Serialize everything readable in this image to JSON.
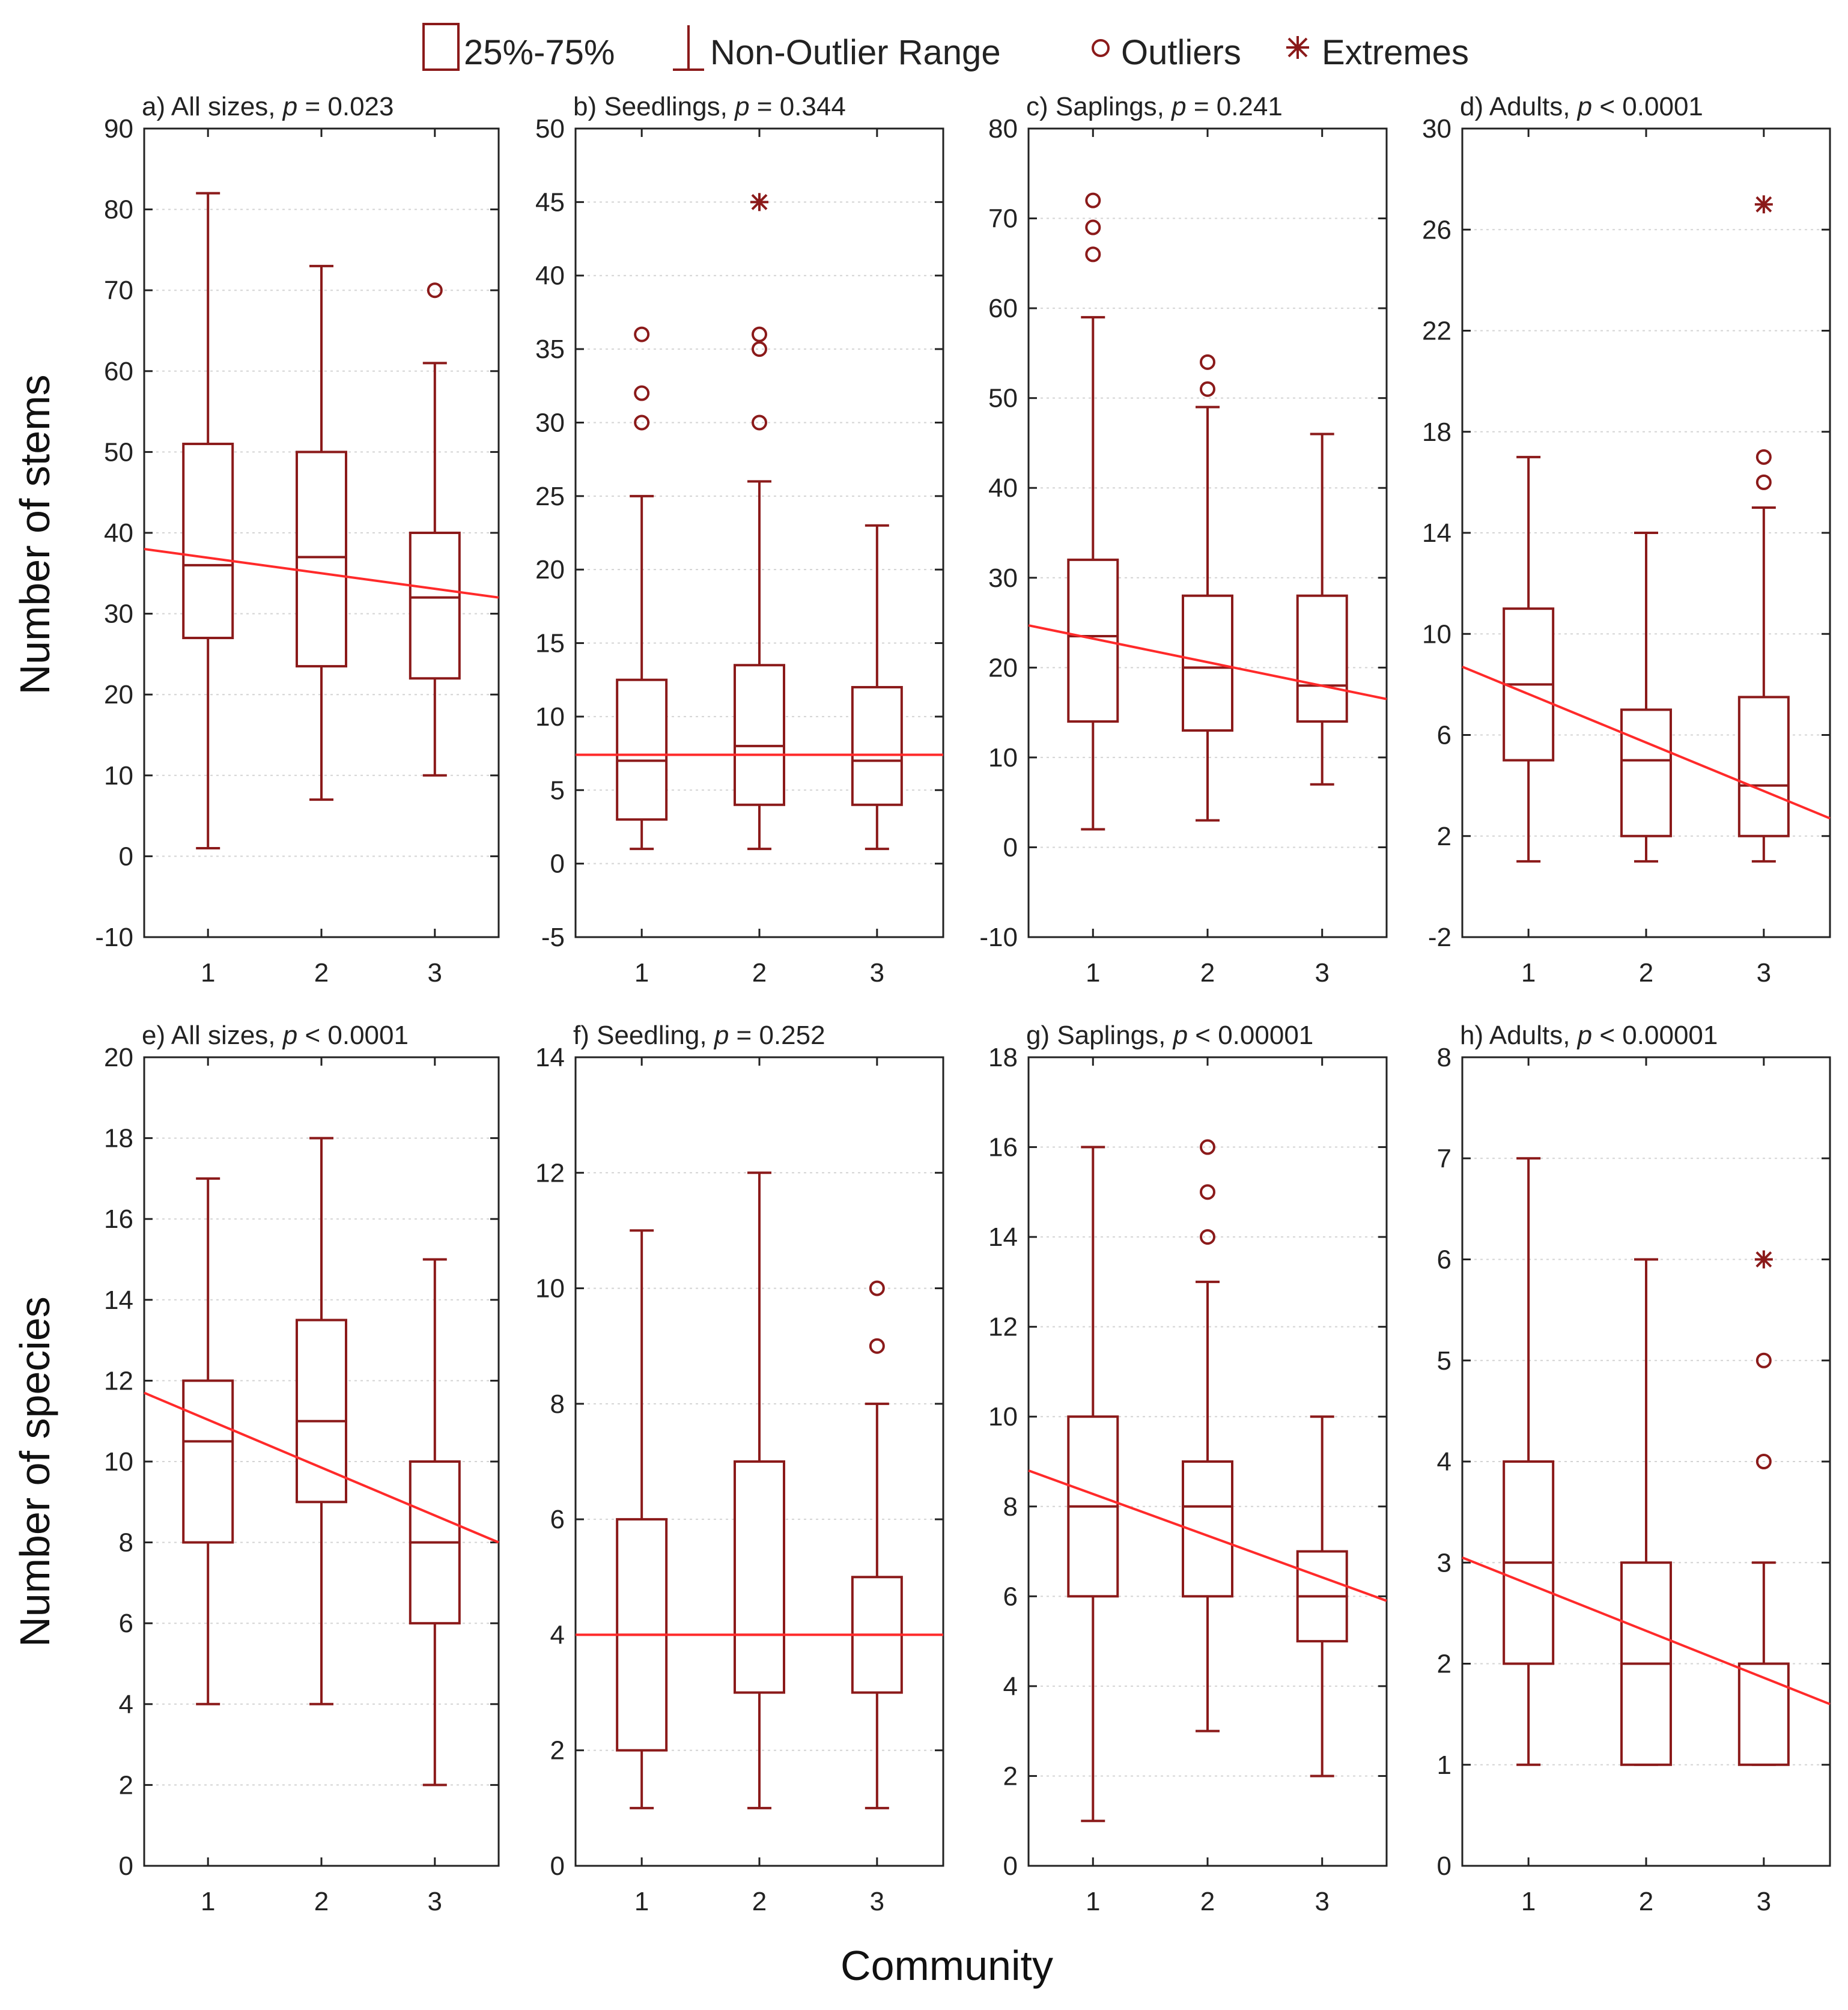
{
  "legend": {
    "box_label": "25%-75%",
    "range_label": "Non-Outlier Range",
    "outlier_label": "Outliers",
    "extreme_label": "Extremes"
  },
  "ylabel_top": "Number of stems",
  "ylabel_bottom": "Number of species",
  "xlabel": "Community",
  "colors": {
    "box": "#8b1a1a",
    "trend": "#ff2a2a"
  },
  "chart_data": [
    {
      "type": "box",
      "id": "a",
      "title_prefix": "a) All sizes,",
      "p_text": "= 0.023",
      "ylim": [
        -10,
        90
      ],
      "yticks": [
        -10,
        0,
        10,
        20,
        30,
        40,
        50,
        60,
        70,
        80,
        90
      ],
      "categories": [
        "1",
        "2",
        "3"
      ],
      "boxes": [
        {
          "community": "1",
          "min": 1,
          "q1": 27,
          "median": 36,
          "q3": 51,
          "max": 82,
          "outliers": [],
          "extremes": []
        },
        {
          "community": "2",
          "min": 7,
          "q1": 23.5,
          "median": 37,
          "q3": 50,
          "max": 73,
          "outliers": [],
          "extremes": []
        },
        {
          "community": "3",
          "min": 10,
          "q1": 22,
          "median": 32,
          "q3": 40,
          "max": 61,
          "outliers": [
            70
          ],
          "extremes": []
        }
      ],
      "trend": {
        "y_left": 38,
        "y_right": 32
      }
    },
    {
      "type": "box",
      "id": "b",
      "title_prefix": "b) Seedlings,",
      "p_text": "= 0.344",
      "ylim": [
        -5,
        50
      ],
      "yticks": [
        -5,
        0,
        5,
        10,
        15,
        20,
        25,
        30,
        35,
        40,
        45,
        50
      ],
      "categories": [
        "1",
        "2",
        "3"
      ],
      "boxes": [
        {
          "community": "1",
          "min": 1,
          "q1": 3,
          "median": 7,
          "q3": 12.5,
          "max": 25,
          "outliers": [
            30,
            32,
            36
          ],
          "extremes": []
        },
        {
          "community": "2",
          "min": 1,
          "q1": 4,
          "median": 8,
          "q3": 13.5,
          "max": 26,
          "outliers": [
            30,
            35,
            36
          ],
          "extremes": [
            45
          ]
        },
        {
          "community": "3",
          "min": 1,
          "q1": 4,
          "median": 7,
          "q3": 12,
          "max": 23,
          "outliers": [],
          "extremes": []
        }
      ],
      "trend": {
        "y_left": 7.4,
        "y_right": 7.4
      }
    },
    {
      "type": "box",
      "id": "c",
      "title_prefix": "c) Saplings,",
      "p_text": "= 0.241",
      "ylim": [
        -10,
        80
      ],
      "yticks": [
        -10,
        0,
        10,
        20,
        30,
        40,
        50,
        60,
        70,
        80
      ],
      "categories": [
        "1",
        "2",
        "3"
      ],
      "boxes": [
        {
          "community": "1",
          "min": 2,
          "q1": 14,
          "median": 23.5,
          "q3": 32,
          "max": 59,
          "outliers": [
            66,
            69,
            72
          ],
          "extremes": []
        },
        {
          "community": "2",
          "min": 3,
          "q1": 13,
          "median": 20,
          "q3": 28,
          "max": 49,
          "outliers": [
            51,
            54
          ],
          "extremes": []
        },
        {
          "community": "3",
          "min": 7,
          "q1": 14,
          "median": 18,
          "q3": 28,
          "max": 46,
          "outliers": [],
          "extremes": []
        }
      ],
      "trend": {
        "y_left": 24.7,
        "y_right": 16.5
      }
    },
    {
      "type": "box",
      "id": "d",
      "title_prefix": "d) Adults,",
      "p_text": "< 0.0001",
      "ylim": [
        -2,
        30
      ],
      "yticks": [
        -2,
        2,
        6,
        10,
        14,
        18,
        22,
        26,
        30
      ],
      "categories": [
        "1",
        "2",
        "3"
      ],
      "boxes": [
        {
          "community": "1",
          "min": 1,
          "q1": 5,
          "median": 8,
          "q3": 11,
          "max": 17,
          "outliers": [],
          "extremes": []
        },
        {
          "community": "2",
          "min": 1,
          "q1": 2,
          "median": 5,
          "q3": 7,
          "max": 14,
          "outliers": [],
          "extremes": []
        },
        {
          "community": "3",
          "min": 1,
          "q1": 2,
          "median": 4,
          "q3": 7.5,
          "max": 15,
          "outliers": [
            16,
            17
          ],
          "extremes": [
            27
          ]
        }
      ],
      "trend": {
        "y_left": 8.7,
        "y_right": 2.7
      }
    },
    {
      "type": "box",
      "id": "e",
      "title_prefix": "e) All sizes,",
      "p_text": "< 0.0001",
      "ylim": [
        0,
        20
      ],
      "yticks": [
        0,
        2,
        4,
        6,
        8,
        10,
        12,
        14,
        16,
        18,
        20
      ],
      "categories": [
        "1",
        "2",
        "3"
      ],
      "boxes": [
        {
          "community": "1",
          "min": 4,
          "q1": 8,
          "median": 10.5,
          "q3": 12,
          "max": 17,
          "outliers": [],
          "extremes": []
        },
        {
          "community": "2",
          "min": 4,
          "q1": 9,
          "median": 11,
          "q3": 13.5,
          "max": 18,
          "outliers": [],
          "extremes": []
        },
        {
          "community": "3",
          "min": 2,
          "q1": 6,
          "median": 8,
          "q3": 10,
          "max": 15,
          "outliers": [],
          "extremes": []
        }
      ],
      "trend": {
        "y_left": 11.7,
        "y_right": 8.0
      }
    },
    {
      "type": "box",
      "id": "f",
      "title_prefix": "f) Seedling,",
      "p_text": "= 0.252",
      "ylim": [
        0,
        14
      ],
      "yticks": [
        0,
        2,
        4,
        6,
        8,
        10,
        12,
        14
      ],
      "categories": [
        "1",
        "2",
        "3"
      ],
      "boxes": [
        {
          "community": "1",
          "min": 1,
          "q1": 2,
          "median": 4,
          "q3": 6,
          "max": 11,
          "outliers": [],
          "extremes": []
        },
        {
          "community": "2",
          "min": 1,
          "q1": 3,
          "median": 4,
          "q3": 7,
          "max": 12,
          "outliers": [],
          "extremes": []
        },
        {
          "community": "3",
          "min": 1,
          "q1": 3,
          "median": 4,
          "q3": 5,
          "max": 8,
          "outliers": [
            9,
            10
          ],
          "extremes": []
        }
      ],
      "trend": {
        "y_left": 4,
        "y_right": 4
      }
    },
    {
      "type": "box",
      "id": "g",
      "title_prefix": "g) Saplings,",
      "p_text": "< 0.00001",
      "ylim": [
        0,
        18
      ],
      "yticks": [
        0,
        2,
        4,
        6,
        8,
        10,
        12,
        14,
        16,
        18
      ],
      "categories": [
        "1",
        "2",
        "3"
      ],
      "boxes": [
        {
          "community": "1",
          "min": 1,
          "q1": 6,
          "median": 8,
          "q3": 10,
          "max": 16,
          "outliers": [],
          "extremes": []
        },
        {
          "community": "2",
          "min": 3,
          "q1": 6,
          "median": 8,
          "q3": 9,
          "max": 13,
          "outliers": [
            14,
            15,
            16
          ],
          "extremes": []
        },
        {
          "community": "3",
          "min": 2,
          "q1": 5,
          "median": 6,
          "q3": 7,
          "max": 10,
          "outliers": [],
          "extremes": []
        }
      ],
      "trend": {
        "y_left": 8.8,
        "y_right": 5.9
      }
    },
    {
      "type": "box",
      "id": "h",
      "title_prefix": "h) Adults,",
      "p_text": "< 0.00001",
      "ylim": [
        0,
        8
      ],
      "yticks": [
        0,
        1,
        2,
        3,
        4,
        5,
        6,
        7,
        8
      ],
      "categories": [
        "1",
        "2",
        "3"
      ],
      "boxes": [
        {
          "community": "1",
          "min": 1,
          "q1": 2,
          "median": 3,
          "q3": 4,
          "max": 7,
          "outliers": [],
          "extremes": []
        },
        {
          "community": "2",
          "min": 1,
          "q1": 1,
          "median": 2,
          "q3": 3,
          "max": 6,
          "outliers": [],
          "extremes": []
        },
        {
          "community": "3",
          "min": 1,
          "q1": 1,
          "median": 2,
          "q3": 2,
          "max": 3,
          "outliers": [
            4,
            5
          ],
          "extremes": [
            6
          ]
        }
      ],
      "trend": {
        "y_left": 3.05,
        "y_right": 1.6
      }
    }
  ]
}
